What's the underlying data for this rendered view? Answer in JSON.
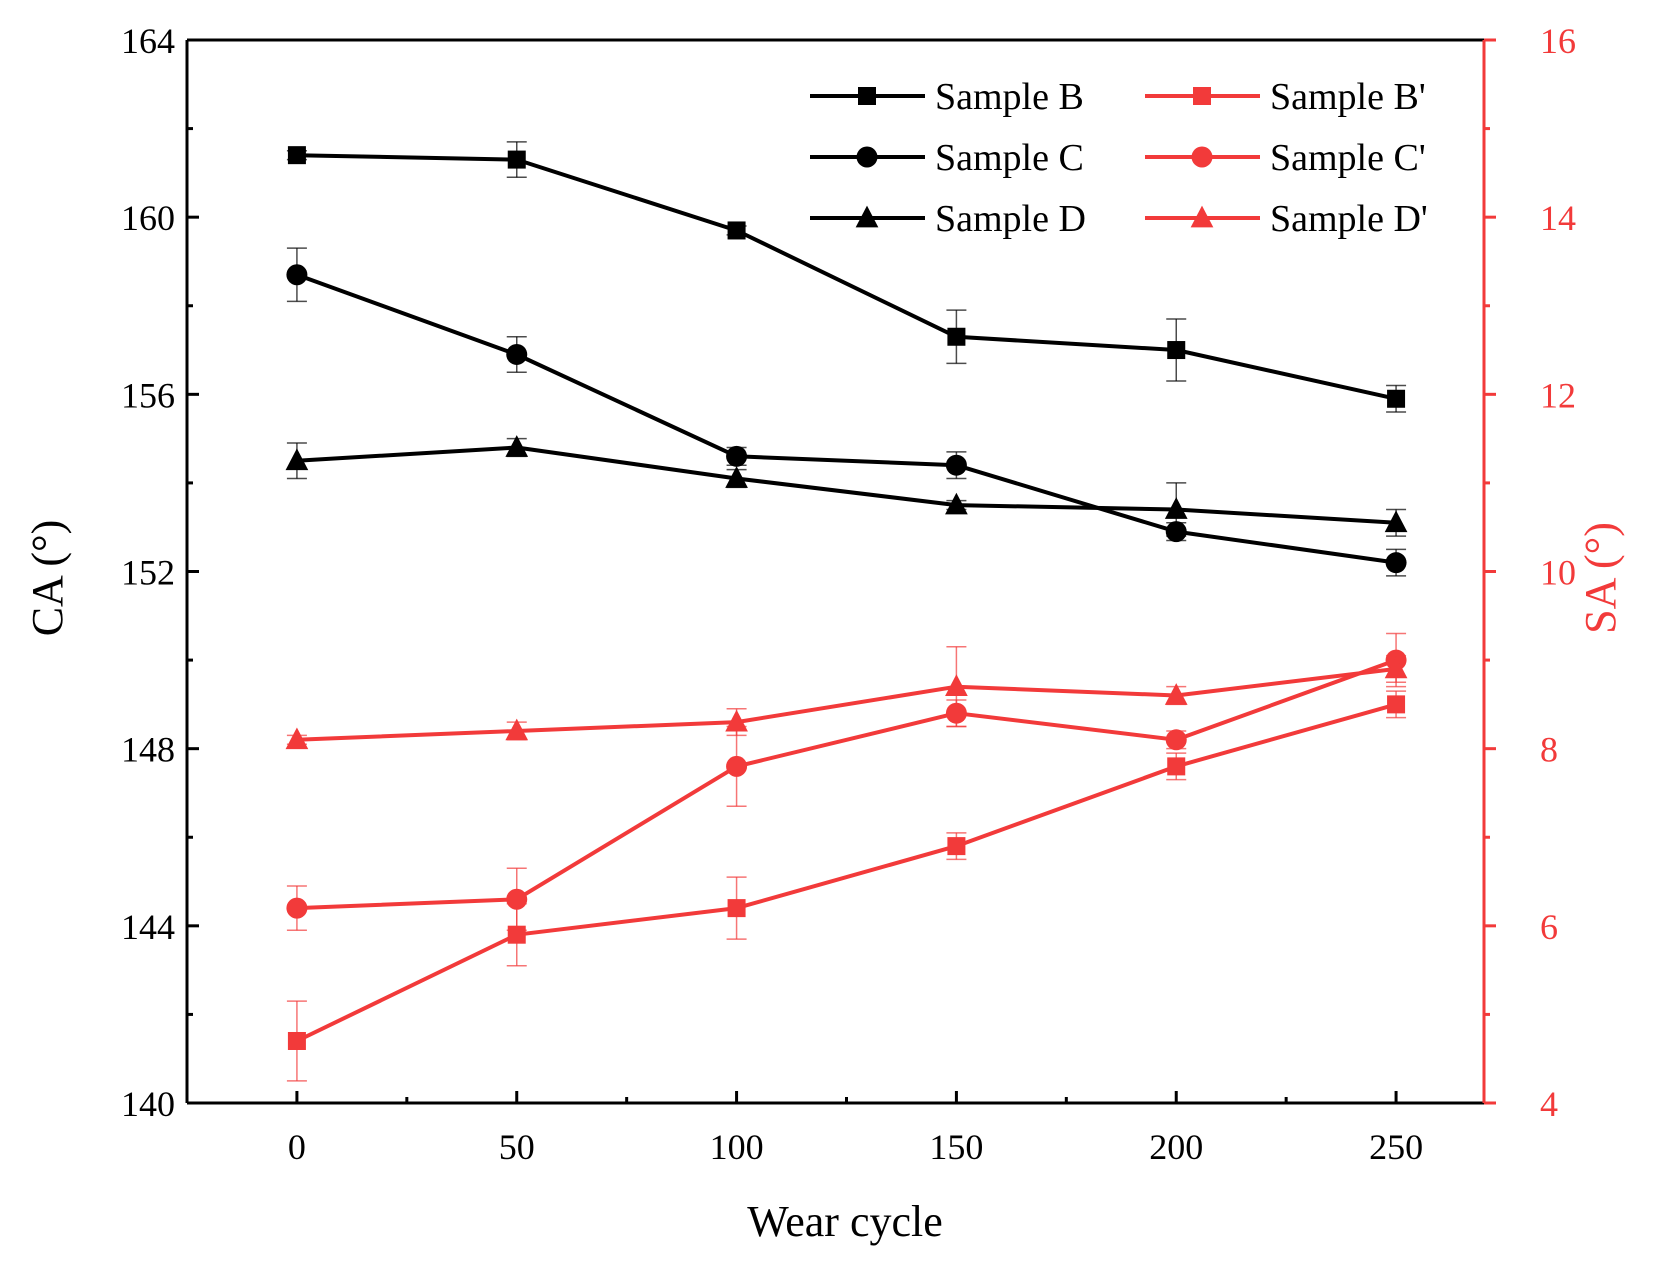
{
  "chart_data": {
    "type": "line",
    "title": "",
    "xlabel": "Wear cycle",
    "ylabel_left": "CA (°)",
    "ylabel_right": "SA (°)",
    "x": [
      0,
      50,
      100,
      150,
      200,
      250
    ],
    "xlim": [
      -25,
      270
    ],
    "xticks": [
      0,
      50,
      100,
      150,
      200,
      250
    ],
    "ylim_left": [
      140,
      164
    ],
    "yticks_left": [
      140,
      144,
      148,
      152,
      156,
      160,
      164
    ],
    "ylim_right": [
      4,
      16
    ],
    "yticks_right": [
      4,
      6,
      8,
      10,
      12,
      14,
      16
    ],
    "legend_position": "top-right",
    "grid": false,
    "colors": {
      "left": "#000000",
      "right": "#f23a3a"
    },
    "series": [
      {
        "name": "Sample B",
        "axis": "left",
        "marker": "square",
        "values": [
          161.4,
          161.3,
          159.7,
          157.3,
          157.0,
          155.9
        ],
        "errors": [
          0.1,
          0.4,
          0.1,
          0.6,
          0.7,
          0.3
        ]
      },
      {
        "name": "Sample C",
        "axis": "left",
        "marker": "circle",
        "values": [
          158.7,
          156.9,
          154.6,
          154.4,
          152.9,
          152.2
        ],
        "errors": [
          0.6,
          0.4,
          0.2,
          0.3,
          0.2,
          0.3
        ]
      },
      {
        "name": "Sample D",
        "axis": "left",
        "marker": "triangle",
        "values": [
          154.5,
          154.8,
          154.1,
          153.5,
          153.4,
          153.1
        ],
        "errors": [
          0.4,
          0.2,
          0.2,
          0.1,
          0.6,
          0.3
        ]
      },
      {
        "name": "Sample B'",
        "axis": "right",
        "marker": "square",
        "values": [
          4.7,
          5.9,
          6.2,
          6.9,
          7.8,
          8.5
        ],
        "errors": [
          0.45,
          0.35,
          0.35,
          0.15,
          0.15,
          0.15
        ]
      },
      {
        "name": "Sample C'",
        "axis": "right",
        "marker": "circle",
        "values": [
          6.2,
          6.3,
          7.8,
          8.4,
          8.1,
          9.0
        ],
        "errors": [
          0.25,
          0.35,
          0.45,
          0.15,
          0.1,
          0.3
        ]
      },
      {
        "name": "Sample D'",
        "axis": "right",
        "marker": "triangle",
        "values": [
          8.1,
          8.2,
          8.3,
          8.7,
          8.6,
          8.9
        ],
        "errors": [
          0.05,
          0.1,
          0.15,
          0.45,
          0.1,
          0.15
        ]
      }
    ]
  }
}
